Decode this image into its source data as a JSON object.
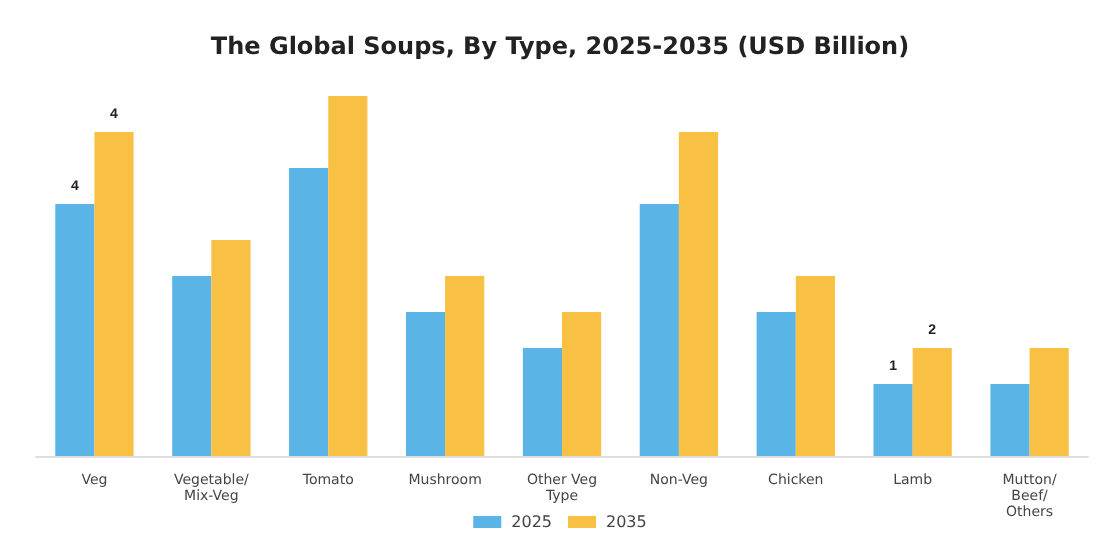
{
  "chart_data": {
    "type": "bar",
    "title": "The Global Soups, By Type, 2025-2035 (USD Billion)",
    "legend": "bottom",
    "grid": false,
    "tick_labels": "x",
    "ylim": [
      0,
      5
    ],
    "categories": [
      "Veg",
      "Vegetable/\nMix-Veg",
      "Tomato",
      "Mushroom",
      "Other Veg\nType",
      "Non-Veg",
      "Chicken",
      "Lamb",
      "Mutton/\nBeef/\nOthers"
    ],
    "series": [
      {
        "name": "2025",
        "color": "#5ab4e5",
        "values": [
          3.5,
          2.5,
          4,
          2,
          1.5,
          3.5,
          2,
          1,
          1
        ],
        "value_labels": [
          "4",
          null,
          null,
          null,
          null,
          null,
          null,
          "1",
          null
        ]
      },
      {
        "name": "2035",
        "color": "#f8c144",
        "values": [
          4.5,
          3,
          5,
          2.5,
          2,
          4.5,
          2.5,
          1.5,
          1.5
        ],
        "value_labels": [
          "4",
          null,
          null,
          null,
          null,
          null,
          null,
          "2",
          null
        ]
      }
    ]
  }
}
